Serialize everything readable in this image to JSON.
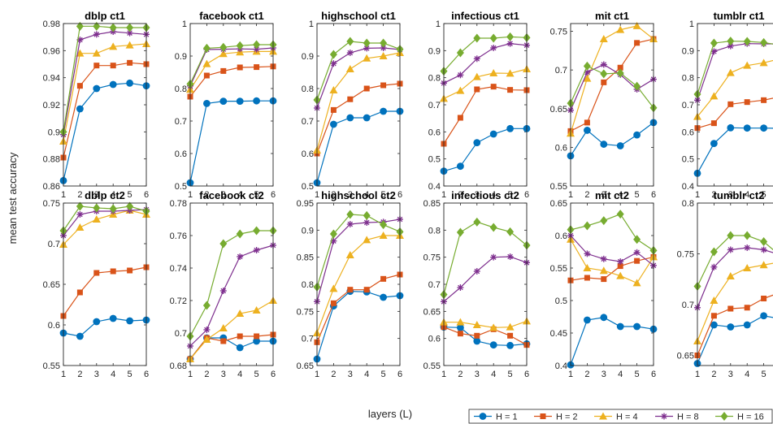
{
  "figure": {
    "ylabel": "mean test accuracy",
    "xlabel": "layers (L)"
  },
  "chart_data": {
    "type": "line",
    "x": [
      1,
      2,
      3,
      4,
      5,
      6
    ],
    "series_names": [
      "H = 1",
      "H = 2",
      "H = 4",
      "H = 8",
      "H = 16"
    ],
    "colors": [
      "#0072BD",
      "#D95319",
      "#EDB120",
      "#7E2F8E",
      "#77AC30"
    ],
    "markers": [
      "circle",
      "square",
      "triangle",
      "star",
      "diamond"
    ],
    "panels": [
      {
        "title": "dblp ct1",
        "ylim": [
          0.86,
          0.98
        ],
        "yticks": [
          "0.86",
          "0.88",
          "0.9",
          "0.92",
          "0.94",
          "0.96",
          "0.98"
        ],
        "ytick_values": [
          0.86,
          0.88,
          0.9,
          0.92,
          0.94,
          0.96,
          0.98
        ],
        "series": [
          [
            0.864,
            0.917,
            0.932,
            0.935,
            0.936,
            0.934
          ],
          [
            0.881,
            0.934,
            0.949,
            0.949,
            0.951,
            0.95
          ],
          [
            0.893,
            0.958,
            0.958,
            0.963,
            0.964,
            0.965
          ],
          [
            0.898,
            0.968,
            0.972,
            0.974,
            0.973,
            0.972
          ],
          [
            0.9,
            0.978,
            0.978,
            0.977,
            0.977,
            0.977
          ]
        ]
      },
      {
        "title": "facebook ct1",
        "ylim": [
          0.5,
          1.0
        ],
        "yticks": [
          "0.5",
          "0.6",
          "0.7",
          "0.8",
          "0.9",
          "1"
        ],
        "ytick_values": [
          0.5,
          0.6,
          0.7,
          0.8,
          0.9,
          1.0
        ],
        "series": [
          [
            0.51,
            0.754,
            0.761,
            0.761,
            0.762,
            0.762
          ],
          [
            0.775,
            0.84,
            0.854,
            0.865,
            0.866,
            0.868
          ],
          [
            0.797,
            0.876,
            0.907,
            0.912,
            0.914,
            0.914
          ],
          [
            0.808,
            0.92,
            0.921,
            0.922,
            0.921,
            0.925
          ],
          [
            0.814,
            0.924,
            0.927,
            0.932,
            0.935,
            0.935
          ]
        ]
      },
      {
        "title": "highschool ct1",
        "ylim": [
          0.5,
          1.0
        ],
        "yticks": [
          "0.5",
          "0.6",
          "0.7",
          "0.8",
          "0.9",
          "1"
        ],
        "ytick_values": [
          0.5,
          0.6,
          0.7,
          0.8,
          0.9,
          1.0
        ],
        "series": [
          [
            0.51,
            0.69,
            0.71,
            0.71,
            0.73,
            0.73
          ],
          [
            0.6,
            0.734,
            0.767,
            0.8,
            0.81,
            0.815
          ],
          [
            0.61,
            0.795,
            0.86,
            0.893,
            0.9,
            0.91
          ],
          [
            0.74,
            0.877,
            0.91,
            0.924,
            0.925,
            0.92
          ],
          [
            0.765,
            0.905,
            0.945,
            0.94,
            0.94,
            0.921
          ]
        ]
      },
      {
        "title": "infectious ct1",
        "ylim": [
          0.4,
          1.0
        ],
        "yticks": [
          "0.4",
          "0.5",
          "0.6",
          "0.7",
          "0.8",
          "0.9",
          "1"
        ],
        "ytick_values": [
          0.4,
          0.5,
          0.6,
          0.7,
          0.8,
          0.9,
          1.0
        ],
        "series": [
          [
            0.455,
            0.473,
            0.56,
            0.592,
            0.612,
            0.612
          ],
          [
            0.556,
            0.652,
            0.757,
            0.767,
            0.755,
            0.754
          ],
          [
            0.723,
            0.752,
            0.803,
            0.817,
            0.816,
            0.832
          ],
          [
            0.78,
            0.81,
            0.87,
            0.91,
            0.926,
            0.92
          ],
          [
            0.824,
            0.892,
            0.946,
            0.946,
            0.951,
            0.948
          ]
        ]
      },
      {
        "title": "mit ct1",
        "ylim": [
          0.55,
          0.76
        ],
        "yticks": [
          "0.55",
          "0.6",
          "0.65",
          "0.7",
          "0.75"
        ],
        "ytick_values": [
          0.55,
          0.6,
          0.65,
          0.7,
          0.75
        ],
        "series": [
          [
            0.589,
            0.622,
            0.604,
            0.602,
            0.616,
            0.632
          ],
          [
            0.621,
            0.632,
            0.684,
            0.703,
            0.735,
            0.74
          ],
          [
            0.618,
            0.689,
            0.74,
            0.752,
            0.757,
            0.74
          ],
          [
            0.648,
            0.697,
            0.707,
            0.694,
            0.675,
            0.688
          ],
          [
            0.657,
            0.705,
            0.695,
            0.696,
            0.679,
            0.651
          ]
        ]
      },
      {
        "title": "tumblr ct1",
        "ylim": [
          0.4,
          1.0
        ],
        "yticks": [
          "0.4",
          "0.5",
          "0.6",
          "0.7",
          "0.8",
          "0.9",
          "1"
        ],
        "ytick_values": [
          0.4,
          0.5,
          0.6,
          0.7,
          0.8,
          0.9,
          1.0
        ],
        "series": [
          [
            0.447,
            0.557,
            0.615,
            0.614,
            0.614,
            0.613
          ],
          [
            0.614,
            0.632,
            0.702,
            0.71,
            0.717,
            0.73
          ],
          [
            0.656,
            0.732,
            0.818,
            0.845,
            0.855,
            0.87
          ],
          [
            0.717,
            0.897,
            0.917,
            0.926,
            0.925,
            0.925
          ],
          [
            0.739,
            0.928,
            0.935,
            0.934,
            0.93,
            0.92
          ]
        ]
      },
      {
        "title": "dblp ct2",
        "ylim": [
          0.55,
          0.75
        ],
        "yticks": [
          "0.55",
          "0.6",
          "0.65",
          "0.7",
          "0.75"
        ],
        "ytick_values": [
          0.55,
          0.6,
          0.65,
          0.7,
          0.75
        ],
        "series": [
          [
            0.59,
            0.586,
            0.604,
            0.608,
            0.605,
            0.606
          ],
          [
            0.611,
            0.64,
            0.664,
            0.666,
            0.667,
            0.671
          ],
          [
            0.699,
            0.72,
            0.73,
            0.736,
            0.741,
            0.736
          ],
          [
            0.71,
            0.736,
            0.74,
            0.74,
            0.741,
            0.742
          ],
          [
            0.716,
            0.746,
            0.744,
            0.743,
            0.746,
            0.74
          ]
        ]
      },
      {
        "title": "facebook ct2",
        "ylim": [
          0.68,
          0.78
        ],
        "yticks": [
          "0.68",
          "0.7",
          "0.72",
          "0.74",
          "0.76",
          "0.78"
        ],
        "ytick_values": [
          0.68,
          0.7,
          0.72,
          0.74,
          0.76,
          0.78
        ],
        "series": [
          [
            0.684,
            0.697,
            0.697,
            0.691,
            0.695,
            0.695
          ],
          [
            0.684,
            0.697,
            0.695,
            0.698,
            0.698,
            0.699
          ],
          [
            0.684,
            0.696,
            0.703,
            0.712,
            0.714,
            0.72
          ],
          [
            0.692,
            0.702,
            0.726,
            0.747,
            0.751,
            0.754
          ],
          [
            0.698,
            0.717,
            0.755,
            0.761,
            0.763,
            0.763
          ]
        ]
      },
      {
        "title": "highschool ct2",
        "ylim": [
          0.65,
          0.95
        ],
        "yticks": [
          "0.65",
          "0.7",
          "0.75",
          "0.8",
          "0.85",
          "0.9",
          "0.95"
        ],
        "ytick_values": [
          0.65,
          0.7,
          0.75,
          0.8,
          0.85,
          0.9,
          0.95
        ],
        "series": [
          [
            0.662,
            0.76,
            0.787,
            0.786,
            0.776,
            0.779
          ],
          [
            0.693,
            0.765,
            0.79,
            0.79,
            0.81,
            0.818
          ],
          [
            0.71,
            0.792,
            0.854,
            0.882,
            0.89,
            0.89
          ],
          [
            0.768,
            0.88,
            0.911,
            0.914,
            0.915,
            0.92
          ],
          [
            0.795,
            0.893,
            0.929,
            0.927,
            0.91,
            0.897
          ]
        ]
      },
      {
        "title": "infectious ct2",
        "ylim": [
          0.55,
          0.85
        ],
        "yticks": [
          "0.55",
          "0.6",
          "0.65",
          "0.7",
          "0.75",
          "0.8",
          "0.85"
        ],
        "ytick_values": [
          0.55,
          0.6,
          0.65,
          0.7,
          0.75,
          0.8,
          0.85
        ],
        "series": [
          [
            0.621,
            0.62,
            0.595,
            0.588,
            0.587,
            0.59
          ],
          [
            0.621,
            0.609,
            0.605,
            0.617,
            0.605,
            0.588
          ],
          [
            0.63,
            0.63,
            0.625,
            0.62,
            0.621,
            0.632
          ],
          [
            0.668,
            0.694,
            0.724,
            0.75,
            0.751,
            0.74
          ],
          [
            0.681,
            0.796,
            0.815,
            0.805,
            0.797,
            0.772
          ]
        ]
      },
      {
        "title": "mit ct2",
        "ylim": [
          0.4,
          0.65
        ],
        "yticks": [
          "0.4",
          "0.45",
          "0.5",
          "0.55",
          "0.6",
          "0.65"
        ],
        "ytick_values": [
          0.4,
          0.45,
          0.5,
          0.55,
          0.6,
          0.65
        ],
        "series": [
          [
            0.401,
            0.47,
            0.474,
            0.46,
            0.46,
            0.456
          ],
          [
            0.531,
            0.535,
            0.533,
            0.553,
            0.561,
            0.567
          ],
          [
            0.594,
            0.55,
            0.546,
            0.538,
            0.527,
            0.567
          ],
          [
            0.6,
            0.572,
            0.564,
            0.56,
            0.574,
            0.554
          ],
          [
            0.609,
            0.615,
            0.623,
            0.633,
            0.594,
            0.577
          ]
        ]
      },
      {
        "title": "tumblr ct2",
        "ylim": [
          0.64,
          0.8
        ],
        "yticks": [
          "0.65",
          "0.7",
          "0.75",
          "0.8"
        ],
        "ytick_values": [
          0.65,
          0.7,
          0.75,
          0.8
        ],
        "series": [
          [
            0.642,
            0.68,
            0.678,
            0.68,
            0.689,
            0.686
          ],
          [
            0.65,
            0.689,
            0.696,
            0.697,
            0.706,
            0.712
          ],
          [
            0.664,
            0.704,
            0.728,
            0.736,
            0.739,
            0.742
          ],
          [
            0.697,
            0.737,
            0.754,
            0.756,
            0.754,
            0.749
          ],
          [
            0.718,
            0.752,
            0.768,
            0.768,
            0.762,
            0.748
          ]
        ]
      }
    ]
  }
}
